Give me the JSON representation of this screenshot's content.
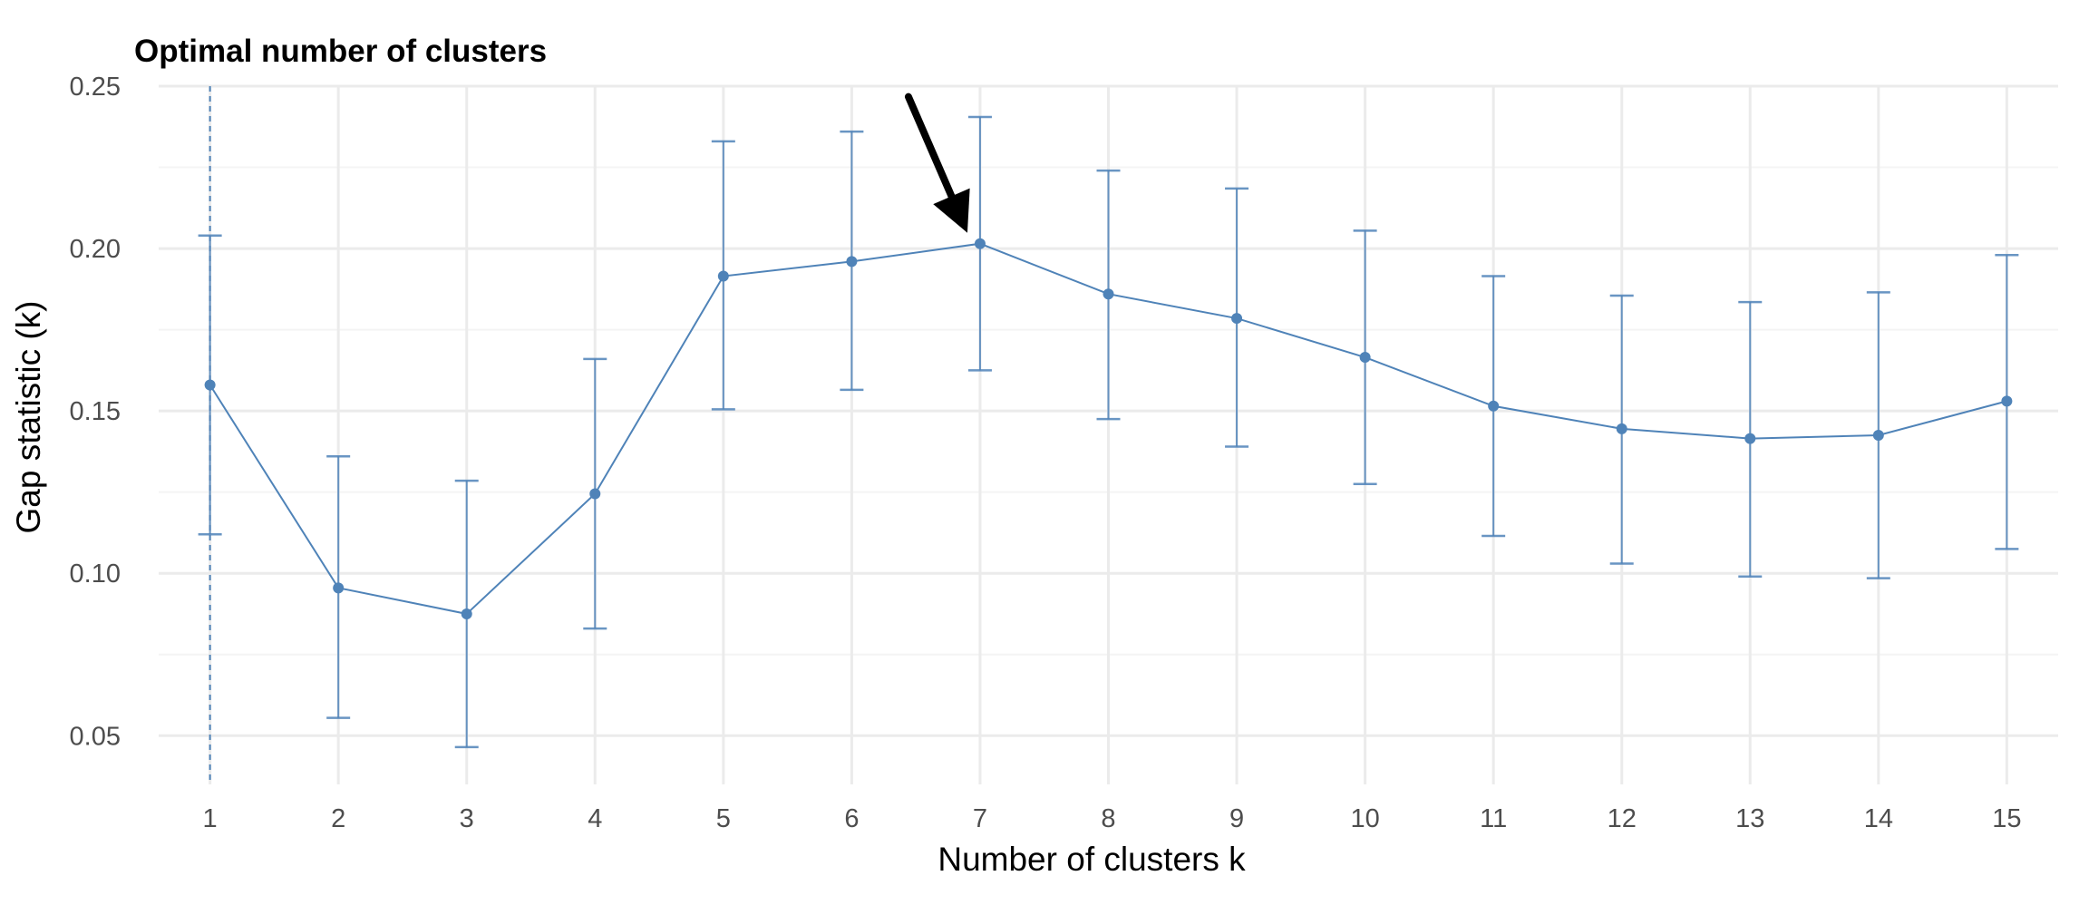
{
  "chart_data": {
    "type": "line",
    "title": "Optimal number of clusters",
    "xlabel": "Number of clusters k",
    "ylabel": "Gap statistic (k)",
    "x": [
      1,
      2,
      3,
      4,
      5,
      6,
      7,
      8,
      9,
      10,
      11,
      12,
      13,
      14,
      15
    ],
    "series": [
      {
        "values": [
          0.158,
          0.0955,
          0.0875,
          0.1245,
          0.1915,
          0.196,
          0.2015,
          0.186,
          0.1785,
          0.1665,
          0.1515,
          0.1445,
          0.1415,
          0.1425,
          0.153
        ],
        "error_low": [
          0.112,
          0.0555,
          0.0465,
          0.083,
          0.1505,
          0.1565,
          0.1625,
          0.1475,
          0.139,
          0.1275,
          0.1115,
          0.103,
          0.099,
          0.0985,
          0.1075
        ],
        "error_high": [
          0.204,
          0.136,
          0.1285,
          0.166,
          0.233,
          0.236,
          0.2405,
          0.224,
          0.2185,
          0.2055,
          0.1915,
          0.1855,
          0.1835,
          0.1865,
          0.198
        ]
      }
    ],
    "optimal_k": 7,
    "xlim": [
      0.6,
      15.4
    ],
    "ylim": [
      0.035,
      0.25
    ],
    "y_ticks": [
      "0.05",
      "0.10",
      "0.15",
      "0.20",
      "0.25"
    ],
    "y_tick_values": [
      0.05,
      0.1,
      0.15,
      0.2,
      0.25
    ],
    "y_minor_ticks": [
      0.075,
      0.125,
      0.175,
      0.225
    ],
    "x_ticks": [
      "1",
      "2",
      "3",
      "4",
      "5",
      "6",
      "7",
      "8",
      "9",
      "10",
      "11",
      "12",
      "13",
      "14",
      "15"
    ],
    "grid": true,
    "annotation": "arrow pointing to k = 7",
    "colors": {
      "series": "#4f83b8",
      "grid": "#ebebeb",
      "arrow": "#000000"
    }
  }
}
